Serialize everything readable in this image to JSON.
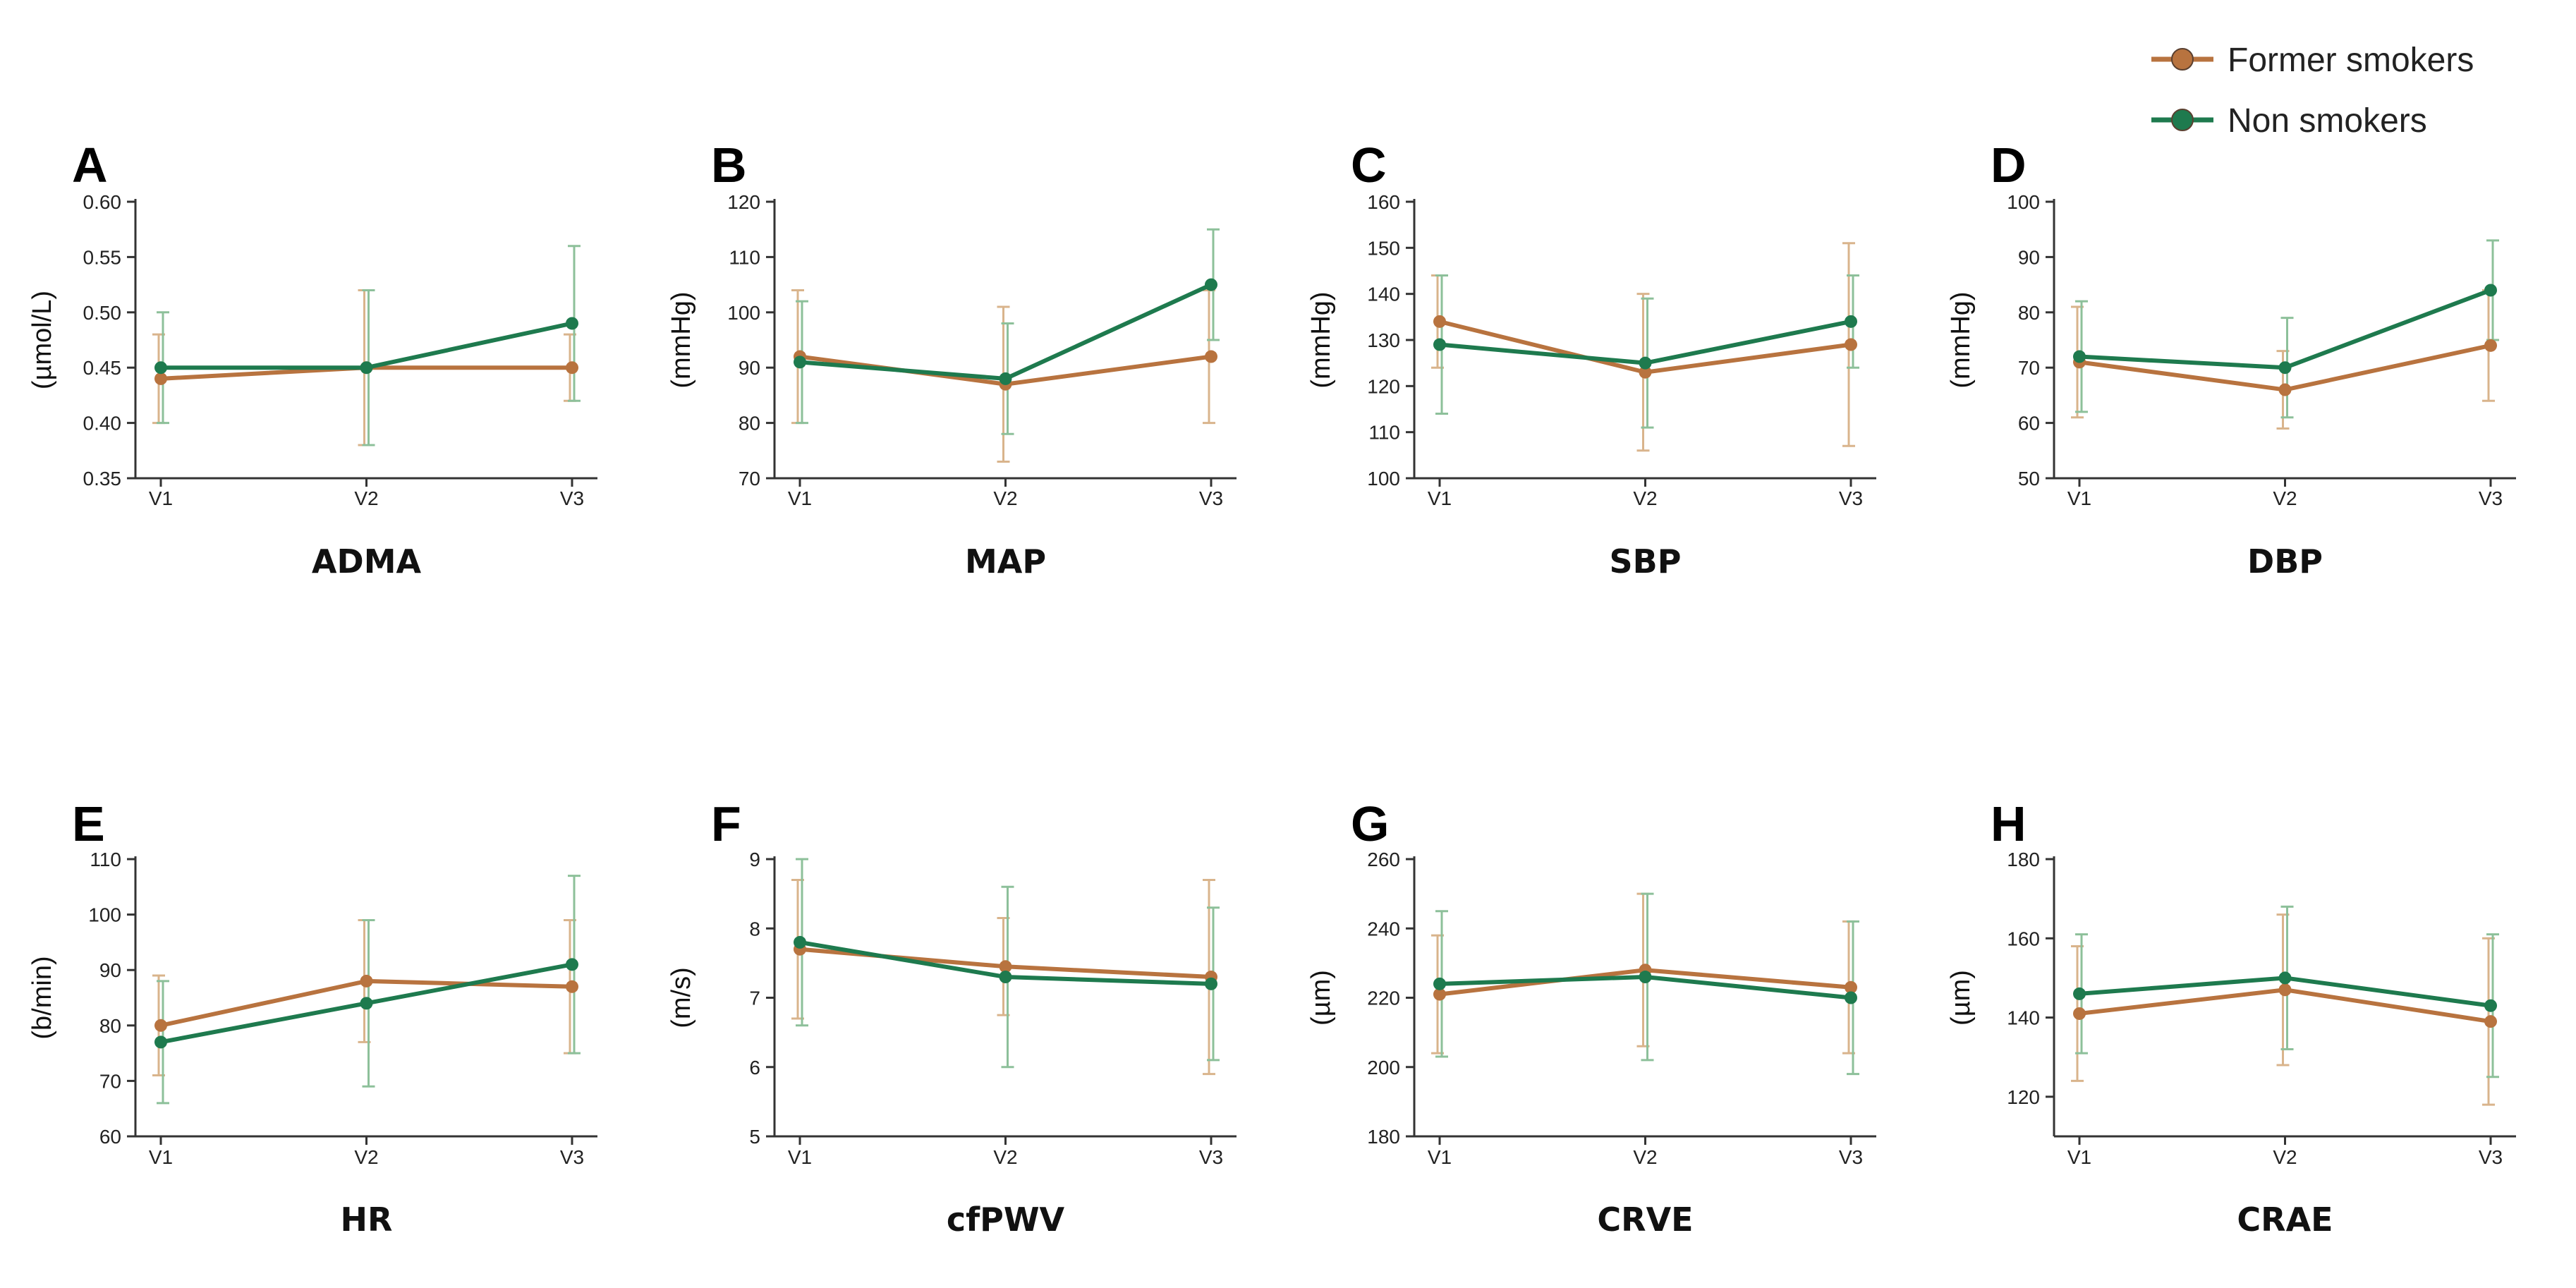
{
  "legend": [
    {
      "name": "Former smokers",
      "color": "#B8733F"
    },
    {
      "name": "Non smokers",
      "color": "#1E7A4E"
    }
  ],
  "chart_data": [
    {
      "panel": "A",
      "type": "line",
      "xlabel": "ADMA",
      "ylabel": "(µmol/L)",
      "categories": [
        "V1",
        "V2",
        "V3"
      ],
      "ylim": [
        0.35,
        0.6
      ],
      "yticks": [
        "0.35",
        "0.40",
        "0.45",
        "0.50",
        "0.55",
        "0.60"
      ],
      "series": [
        {
          "name": "Former smokers",
          "values": [
            0.44,
            0.45,
            0.45
          ],
          "err": [
            0.04,
            0.07,
            0.03
          ]
        },
        {
          "name": "Non smokers",
          "values": [
            0.45,
            0.45,
            0.49
          ],
          "err": [
            0.05,
            0.07,
            0.07
          ]
        }
      ]
    },
    {
      "panel": "B",
      "type": "line",
      "xlabel": "MAP",
      "ylabel": "(mmHg)",
      "categories": [
        "V1",
        "V2",
        "V3"
      ],
      "ylim": [
        70,
        120
      ],
      "yticks": [
        "70",
        "80",
        "90",
        "100",
        "110",
        "120"
      ],
      "series": [
        {
          "name": "Former smokers",
          "values": [
            92,
            87,
            92
          ],
          "err": [
            12,
            14,
            12
          ]
        },
        {
          "name": "Non smokers",
          "values": [
            91,
            88,
            105
          ],
          "err": [
            11,
            10,
            10
          ]
        }
      ]
    },
    {
      "panel": "C",
      "type": "line",
      "xlabel": "SBP",
      "ylabel": "(mmHg)",
      "categories": [
        "V1",
        "V2",
        "V3"
      ],
      "ylim": [
        100,
        160
      ],
      "yticks": [
        "100",
        "110",
        "120",
        "130",
        "140",
        "150",
        "160"
      ],
      "series": [
        {
          "name": "Former smokers",
          "values": [
            134,
            123,
            129
          ],
          "err": [
            10,
            17,
            22
          ]
        },
        {
          "name": "Non smokers",
          "values": [
            129,
            125,
            134
          ],
          "err": [
            15,
            14,
            10
          ]
        }
      ]
    },
    {
      "panel": "D",
      "type": "line",
      "xlabel": "DBP",
      "ylabel": "(mmHg)",
      "categories": [
        "V1",
        "V2",
        "V3"
      ],
      "ylim": [
        50,
        100
      ],
      "yticks": [
        "50",
        "60",
        "70",
        "80",
        "90",
        "100"
      ],
      "series": [
        {
          "name": "Former smokers",
          "values": [
            71,
            66,
            74
          ],
          "err": [
            10,
            7,
            10
          ]
        },
        {
          "name": "Non smokers",
          "values": [
            72,
            70,
            84
          ],
          "err": [
            10,
            9,
            9
          ]
        }
      ]
    },
    {
      "panel": "E",
      "type": "line",
      "xlabel": "HR",
      "ylabel": "(b/min)",
      "categories": [
        "V1",
        "V2",
        "V3"
      ],
      "ylim": [
        60,
        110
      ],
      "yticks": [
        "60",
        "70",
        "80",
        "90",
        "100",
        "110"
      ],
      "series": [
        {
          "name": "Former smokers",
          "values": [
            80,
            88,
            87
          ],
          "err": [
            9,
            11,
            12
          ]
        },
        {
          "name": "Non smokers",
          "values": [
            77,
            84,
            91
          ],
          "err": [
            11,
            15,
            16
          ]
        }
      ]
    },
    {
      "panel": "F",
      "type": "line",
      "xlabel": "cfPWV",
      "ylabel": "(m/s)",
      "categories": [
        "V1",
        "V2",
        "V3"
      ],
      "ylim": [
        5,
        9
      ],
      "yticks": [
        "5",
        "6",
        "7",
        "8",
        "9"
      ],
      "series": [
        {
          "name": "Former smokers",
          "values": [
            7.7,
            7.45,
            7.3
          ],
          "err": [
            1.0,
            0.7,
            1.4
          ]
        },
        {
          "name": "Non smokers",
          "values": [
            7.8,
            7.3,
            7.2
          ],
          "err": [
            1.2,
            1.3,
            1.1
          ]
        }
      ]
    },
    {
      "panel": "G",
      "type": "line",
      "xlabel": "CRVE",
      "ylabel": "(µm)",
      "categories": [
        "V1",
        "V2",
        "V3"
      ],
      "ylim": [
        180,
        260
      ],
      "yticks": [
        "180",
        "200",
        "220",
        "240",
        "260"
      ],
      "series": [
        {
          "name": "Former smokers",
          "values": [
            221,
            228,
            223
          ],
          "err": [
            17,
            22,
            19
          ]
        },
        {
          "name": "Non smokers",
          "values": [
            224,
            226,
            220
          ],
          "err": [
            21,
            24,
            22
          ]
        }
      ]
    },
    {
      "panel": "H",
      "type": "line",
      "xlabel": "CRAE",
      "ylabel": "(µm)",
      "categories": [
        "V1",
        "V2",
        "V3"
      ],
      "ylim": [
        110,
        180
      ],
      "yticks": [
        "120",
        "140",
        "160",
        "180"
      ],
      "series": [
        {
          "name": "Former smokers",
          "values": [
            141,
            147,
            139
          ],
          "err": [
            17,
            19,
            21
          ]
        },
        {
          "name": "Non smokers",
          "values": [
            146,
            150,
            143
          ],
          "err": [
            15,
            18,
            18
          ]
        }
      ]
    }
  ]
}
